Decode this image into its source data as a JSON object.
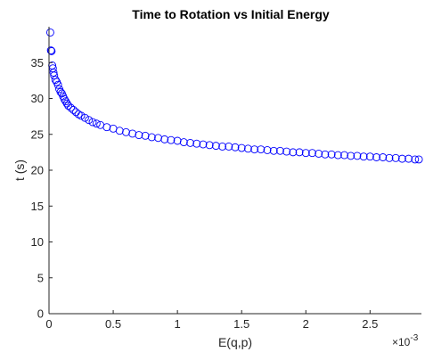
{
  "chart_data": {
    "type": "scatter",
    "title": "Time to Rotation vs Initial Energy",
    "xlabel": "E(q,p)",
    "ylabel": "t (s)",
    "x_exponent_label": "×10",
    "x_exponent_value": "-3",
    "xlim": [
      0,
      2.9
    ],
    "ylim": [
      0,
      40
    ],
    "x_ticks": [
      0,
      0.5,
      1,
      1.5,
      2,
      2.5
    ],
    "x_tick_labels": [
      "0",
      "0.5",
      "1",
      "1.5",
      "2",
      "2.5"
    ],
    "y_ticks": [
      0,
      5,
      10,
      15,
      20,
      25,
      30,
      35
    ],
    "y_tick_labels": [
      "0",
      "5",
      "10",
      "15",
      "20",
      "25",
      "30",
      "35"
    ],
    "marker": "circle",
    "marker_color": "#0000ff",
    "grid": false,
    "series": [
      {
        "points": [
          [
            0.01,
            39.2
          ],
          [
            0.015,
            36.7
          ],
          [
            0.02,
            36.6
          ],
          [
            0.025,
            34.6
          ],
          [
            0.03,
            34.2
          ],
          [
            0.035,
            33.6
          ],
          [
            0.04,
            33.2
          ],
          [
            0.05,
            32.6
          ],
          [
            0.06,
            32.3
          ],
          [
            0.07,
            31.9
          ],
          [
            0.08,
            31.3
          ],
          [
            0.09,
            30.9
          ],
          [
            0.1,
            30.7
          ],
          [
            0.11,
            30.3
          ],
          [
            0.12,
            29.9
          ],
          [
            0.13,
            29.6
          ],
          [
            0.14,
            29.3
          ],
          [
            0.15,
            29.0
          ],
          [
            0.17,
            28.7
          ],
          [
            0.19,
            28.4
          ],
          [
            0.21,
            28.1
          ],
          [
            0.23,
            27.8
          ],
          [
            0.25,
            27.6
          ],
          [
            0.28,
            27.3
          ],
          [
            0.31,
            27.0
          ],
          [
            0.34,
            26.7
          ],
          [
            0.37,
            26.5
          ],
          [
            0.4,
            26.3
          ],
          [
            0.45,
            26.0
          ],
          [
            0.5,
            25.8
          ],
          [
            0.55,
            25.5
          ],
          [
            0.6,
            25.3
          ],
          [
            0.65,
            25.1
          ],
          [
            0.7,
            24.9
          ],
          [
            0.75,
            24.8
          ],
          [
            0.8,
            24.6
          ],
          [
            0.85,
            24.5
          ],
          [
            0.9,
            24.3
          ],
          [
            0.95,
            24.2
          ],
          [
            1.0,
            24.1
          ],
          [
            1.05,
            23.9
          ],
          [
            1.1,
            23.8
          ],
          [
            1.15,
            23.7
          ],
          [
            1.2,
            23.6
          ],
          [
            1.25,
            23.5
          ],
          [
            1.3,
            23.4
          ],
          [
            1.35,
            23.3
          ],
          [
            1.4,
            23.3
          ],
          [
            1.45,
            23.2
          ],
          [
            1.5,
            23.1
          ],
          [
            1.55,
            23.0
          ],
          [
            1.6,
            22.9
          ],
          [
            1.65,
            22.9
          ],
          [
            1.7,
            22.8
          ],
          [
            1.75,
            22.7
          ],
          [
            1.8,
            22.7
          ],
          [
            1.85,
            22.6
          ],
          [
            1.9,
            22.5
          ],
          [
            1.95,
            22.5
          ],
          [
            2.0,
            22.4
          ],
          [
            2.05,
            22.4
          ],
          [
            2.1,
            22.3
          ],
          [
            2.15,
            22.2
          ],
          [
            2.2,
            22.2
          ],
          [
            2.25,
            22.1
          ],
          [
            2.3,
            22.1
          ],
          [
            2.35,
            22.0
          ],
          [
            2.4,
            22.0
          ],
          [
            2.45,
            21.9
          ],
          [
            2.5,
            21.9
          ],
          [
            2.55,
            21.8
          ],
          [
            2.6,
            21.8
          ],
          [
            2.65,
            21.7
          ],
          [
            2.7,
            21.7
          ],
          [
            2.75,
            21.6
          ],
          [
            2.8,
            21.6
          ],
          [
            2.85,
            21.5
          ],
          [
            2.88,
            21.5
          ]
        ]
      }
    ]
  }
}
